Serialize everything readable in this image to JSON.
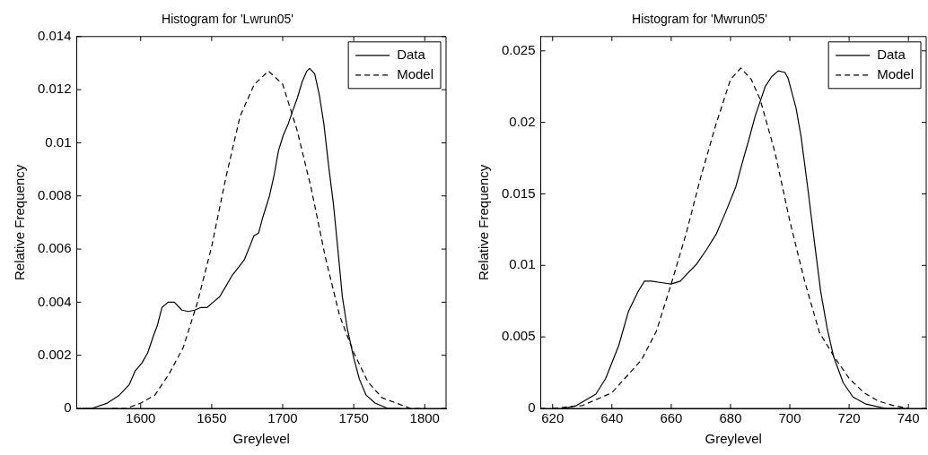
{
  "chart_data": [
    {
      "type": "line",
      "title": "Histogram for 'Lwrun05'",
      "xlabel": "Greylevel",
      "ylabel": "Relative Frequency",
      "xlim": [
        1555,
        1815
      ],
      "ylim": [
        0,
        0.014
      ],
      "xticks": [
        1600,
        1650,
        1700,
        1750,
        1800
      ],
      "yticks": [
        0,
        0.002,
        0.004,
        0.006,
        0.008,
        0.01,
        0.012,
        0.014
      ],
      "grid": false,
      "legend": "top right",
      "marker": "none",
      "series": [
        {
          "name": "Data",
          "color": "#000000",
          "line_style": "solid",
          "x": [
            1559,
            1565.5,
            1576.5,
            1585,
            1592,
            1596,
            1600.7,
            1605,
            1609.4,
            1611.6,
            1615,
            1619.3,
            1623.7,
            1629,
            1633.6,
            1638,
            1642.4,
            1646.8,
            1651,
            1655.5,
            1660,
            1664.3,
            1668.7,
            1673,
            1677.5,
            1679.7,
            1683,
            1686,
            1690.7,
            1694,
            1697,
            1700.5,
            1703.8,
            1707,
            1710.4,
            1713.7,
            1717,
            1719,
            1722.5,
            1725.8,
            1729,
            1732.4,
            1735.7,
            1739,
            1742,
            1745.5,
            1750,
            1754,
            1758.7,
            1765,
            1774,
            1783
          ],
          "values": [
            0,
            0,
            0.0002,
            0.0005,
            0.0009,
            0.0014,
            0.0017,
            0.0021,
            0.0028,
            0.0031,
            0.0038,
            0.004,
            0.004,
            0.0037,
            0.00365,
            0.0037,
            0.0038,
            0.0038,
            0.004,
            0.0042,
            0.0046,
            0.005,
            0.0053,
            0.0056,
            0.0062,
            0.0065,
            0.0066,
            0.0072,
            0.008,
            0.0088,
            0.0097,
            0.0103,
            0.0107,
            0.0112,
            0.0117,
            0.0123,
            0.0127,
            0.0128,
            0.0126,
            0.0118,
            0.0107,
            0.0091,
            0.0077,
            0.0059,
            0.0042,
            0.003,
            0.0019,
            0.0011,
            0.0005,
            0.0002,
            0,
            0
          ]
        },
        {
          "name": "Model",
          "color": "#000000",
          "line_style": "dashed",
          "x": [
            1580,
            1590,
            1600,
            1610,
            1620,
            1630,
            1640,
            1650,
            1660,
            1670,
            1680,
            1690,
            1700,
            1710,
            1720,
            1730,
            1740,
            1750,
            1760,
            1770,
            1780,
            1790,
            1800
          ],
          "values": [
            0,
            0,
            0.0002,
            0.0005,
            0.0013,
            0.0023,
            0.004,
            0.0061,
            0.0087,
            0.011,
            0.0122,
            0.0127,
            0.0122,
            0.0105,
            0.0083,
            0.0057,
            0.0035,
            0.0021,
            0.001,
            0.0004,
            0.0002,
            0,
            0
          ]
        }
      ]
    },
    {
      "type": "line",
      "title": "Histogram for 'Mwrun05'",
      "xlabel": "Greylevel",
      "ylabel": "Relative Frequency",
      "xlim": [
        616,
        746
      ],
      "ylim": [
        0,
        0.026
      ],
      "xticks": [
        620,
        640,
        660,
        680,
        700,
        720,
        740
      ],
      "yticks": [
        0,
        0.005,
        0.01,
        0.015,
        0.02,
        0.025
      ],
      "grid": false,
      "legend": "top right",
      "marker": "none",
      "series": [
        {
          "name": "Data",
          "color": "#000000",
          "line_style": "solid",
          "x": [
            623.6,
            628,
            634.6,
            637.9,
            642.3,
            645.6,
            648.9,
            651,
            653.3,
            656.6,
            659.9,
            663.1,
            665.3,
            668.6,
            671.9,
            675.2,
            678.5,
            681.8,
            684,
            686.2,
            688.4,
            691.7,
            693.9,
            696.1,
            698.3,
            699.4,
            702.1,
            703.8,
            706,
            708.2,
            710.4,
            712.6,
            714.8,
            718,
            721.3,
            725.7,
            732.3,
            738.9
          ],
          "values": [
            0,
            0.0002,
            0.001,
            0.0021,
            0.0044,
            0.0068,
            0.0082,
            0.0089,
            0.0089,
            0.0088,
            0.0087,
            0.0089,
            0.0094,
            0.0101,
            0.0111,
            0.0122,
            0.0138,
            0.0155,
            0.0172,
            0.0188,
            0.0205,
            0.0225,
            0.0232,
            0.0236,
            0.0235,
            0.0231,
            0.021,
            0.019,
            0.0155,
            0.0118,
            0.0082,
            0.0056,
            0.0036,
            0.0018,
            0.0008,
            0.0003,
            0,
            0
          ]
        },
        {
          "name": "Model",
          "color": "#000000",
          "line_style": "dashed",
          "x": [
            620,
            630,
            640,
            650,
            655,
            660,
            665,
            670,
            675,
            680,
            683.5,
            687,
            690,
            695,
            700,
            705,
            710,
            715,
            720,
            725,
            730,
            735,
            740
          ],
          "values": [
            0,
            0.0002,
            0.0011,
            0.0034,
            0.0054,
            0.0087,
            0.0122,
            0.0162,
            0.0198,
            0.023,
            0.0238,
            0.023,
            0.0216,
            0.0179,
            0.0131,
            0.0089,
            0.0053,
            0.0036,
            0.0021,
            0.0011,
            0.0005,
            0.0002,
            0
          ]
        }
      ]
    }
  ]
}
